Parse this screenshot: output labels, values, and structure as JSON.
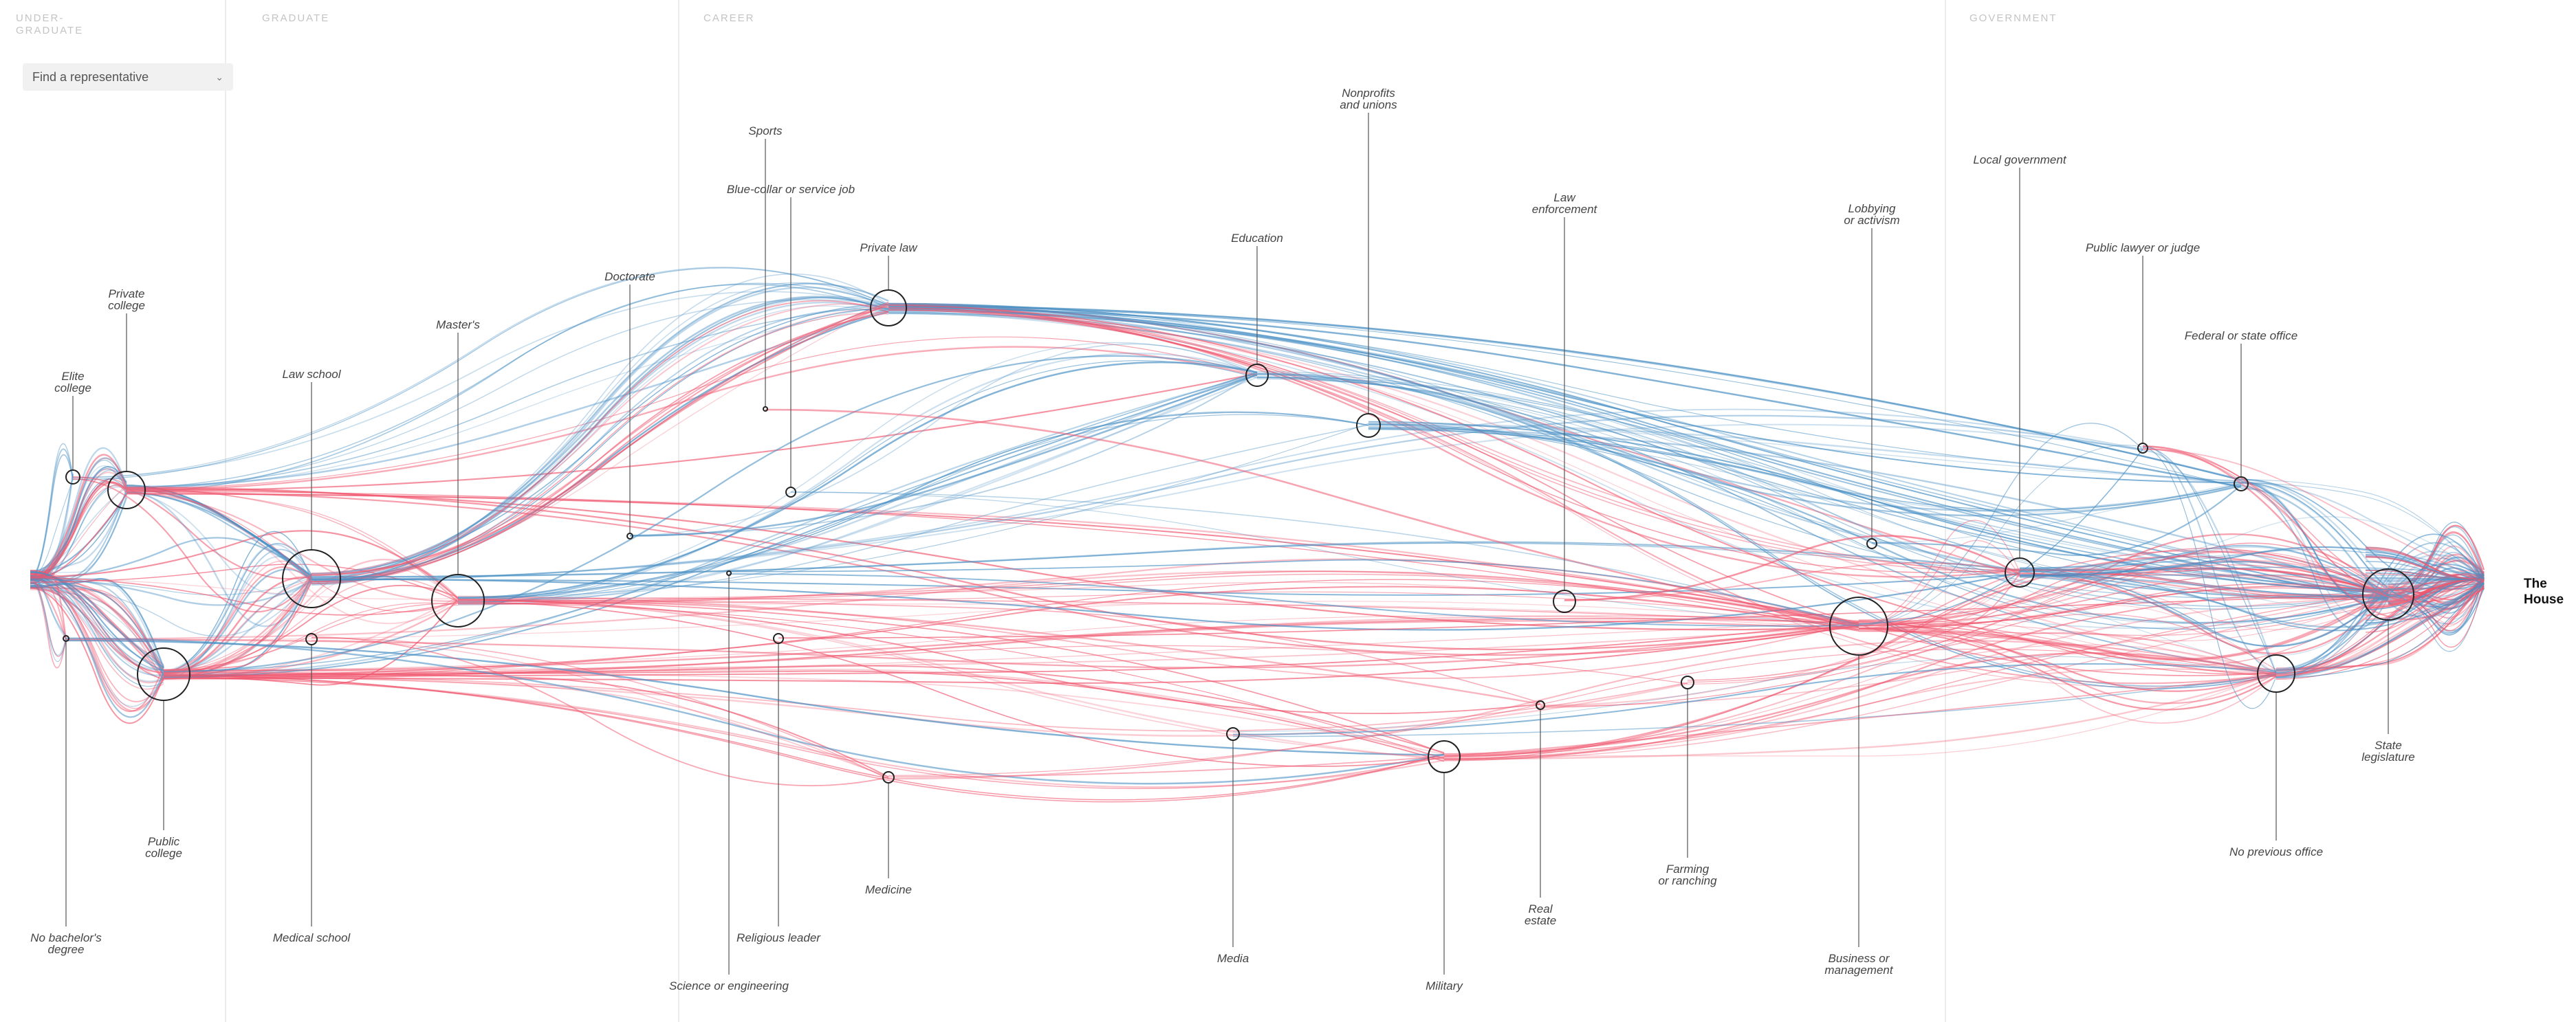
{
  "columns": [
    {
      "key": "undergraduate",
      "line1": "UNDER-",
      "line2": "GRADUATE"
    },
    {
      "key": "graduate",
      "line1": "GRADUATE",
      "line2": ""
    },
    {
      "key": "career",
      "line1": "CAREER",
      "line2": ""
    },
    {
      "key": "government",
      "line1": "GOVERNMENT",
      "line2": ""
    }
  ],
  "selector": {
    "label": "Find a representative",
    "icon": "chevron-down-icon"
  },
  "colors": {
    "democrat": "#4a90c4",
    "republican": "#f0566e",
    "node_stroke": "#222222",
    "divider": "#ececec"
  },
  "terminal": {
    "label": "The House"
  },
  "nodes": [
    {
      "id": "elite",
      "lines": [
        "Elite",
        "college"
      ]
    },
    {
      "id": "private_college",
      "lines": [
        "Private",
        "college"
      ]
    },
    {
      "id": "public_college",
      "lines": [
        "Public",
        "college"
      ]
    },
    {
      "id": "no_degree",
      "lines": [
        "No bachelor's",
        "degree"
      ]
    },
    {
      "id": "law_school",
      "lines": [
        "Law school"
      ]
    },
    {
      "id": "medical_school",
      "lines": [
        "Medical school"
      ]
    },
    {
      "id": "masters",
      "lines": [
        "Master's"
      ]
    },
    {
      "id": "doctorate",
      "lines": [
        "Doctorate"
      ]
    },
    {
      "id": "science",
      "lines": [
        "Science or engineering"
      ]
    },
    {
      "id": "sports",
      "lines": [
        "Sports"
      ]
    },
    {
      "id": "blue_collar",
      "lines": [
        "Blue-collar or service job"
      ]
    },
    {
      "id": "religious",
      "lines": [
        "Religious leader"
      ]
    },
    {
      "id": "private_law",
      "lines": [
        "Private law"
      ]
    },
    {
      "id": "medicine",
      "lines": [
        "Medicine"
      ]
    },
    {
      "id": "education",
      "lines": [
        "Education"
      ]
    },
    {
      "id": "media",
      "lines": [
        "Media"
      ]
    },
    {
      "id": "nonprofits",
      "lines": [
        "Nonprofits",
        "and unions"
      ]
    },
    {
      "id": "military",
      "lines": [
        "Military"
      ]
    },
    {
      "id": "real_estate",
      "lines": [
        "Real",
        "estate"
      ]
    },
    {
      "id": "law_enforcement",
      "lines": [
        "Law",
        "enforcement"
      ]
    },
    {
      "id": "farming",
      "lines": [
        "Farming",
        "or ranching"
      ]
    },
    {
      "id": "business",
      "lines": [
        "Business or",
        "management"
      ]
    },
    {
      "id": "lobbying",
      "lines": [
        "Lobbying",
        "or activism"
      ]
    },
    {
      "id": "local_gov",
      "lines": [
        "Local government"
      ]
    },
    {
      "id": "public_lawyer",
      "lines": [
        "Public lawyer or judge"
      ]
    },
    {
      "id": "federal_state",
      "lines": [
        "Federal or state office"
      ]
    },
    {
      "id": "no_previous",
      "lines": [
        "No previous office"
      ]
    },
    {
      "id": "state_leg",
      "lines": [
        "State",
        "legislature"
      ]
    }
  ],
  "flows": [
    [
      "elite",
      "private_law",
      3,
      "d"
    ],
    [
      "elite",
      "law_school",
      2,
      "r"
    ],
    [
      "private_college",
      "law_school",
      8,
      "d"
    ],
    [
      "private_college",
      "private_law",
      6,
      "d"
    ],
    [
      "private_college",
      "education",
      3,
      "r"
    ],
    [
      "private_college",
      "business",
      6,
      "r"
    ],
    [
      "private_college",
      "masters",
      5,
      "r"
    ],
    [
      "public_college",
      "law_school",
      10,
      "d"
    ],
    [
      "public_college",
      "law_school",
      10,
      "r"
    ],
    [
      "public_college",
      "masters",
      9,
      "r"
    ],
    [
      "public_college",
      "business",
      10,
      "r"
    ],
    [
      "public_college",
      "military",
      8,
      "r"
    ],
    [
      "public_college",
      "education",
      4,
      "d"
    ],
    [
      "public_college",
      "farming",
      3,
      "r"
    ],
    [
      "public_college",
      "medicine",
      2,
      "r"
    ],
    [
      "no_degree",
      "business",
      3,
      "r"
    ],
    [
      "no_degree",
      "military",
      2,
      "d"
    ],
    [
      "law_school",
      "private_law",
      14,
      "d"
    ],
    [
      "law_school",
      "private_law",
      10,
      "r"
    ],
    [
      "law_school",
      "public_lawyer",
      3,
      "d"
    ],
    [
      "law_school",
      "local_gov",
      4,
      "d"
    ],
    [
      "masters",
      "business",
      8,
      "r"
    ],
    [
      "masters",
      "education",
      7,
      "d"
    ],
    [
      "masters",
      "nonprofits",
      5,
      "d"
    ],
    [
      "masters",
      "military",
      5,
      "r"
    ],
    [
      "masters",
      "real_estate",
      3,
      "r"
    ],
    [
      "medical_school",
      "medicine",
      3,
      "r"
    ],
    [
      "doctorate",
      "education",
      3,
      "d"
    ],
    [
      "science",
      "business",
      2,
      "d"
    ],
    [
      "sports",
      "business",
      1,
      "r"
    ],
    [
      "blue_collar",
      "business",
      2,
      "d"
    ],
    [
      "religious",
      "state_leg",
      1,
      "r"
    ],
    [
      "private_law",
      "state_leg",
      12,
      "d"
    ],
    [
      "private_law",
      "local_gov",
      6,
      "r"
    ],
    [
      "private_law",
      "federal_state",
      8,
      "d"
    ],
    [
      "private_law",
      "no_previous",
      6,
      "r"
    ],
    [
      "education",
      "state_leg",
      6,
      "d"
    ],
    [
      "education",
      "no_previous",
      4,
      "d"
    ],
    [
      "nonprofits",
      "state_leg",
      6,
      "d"
    ],
    [
      "nonprofits",
      "federal_state",
      4,
      "d"
    ],
    [
      "military",
      "state_leg",
      6,
      "r"
    ],
    [
      "military",
      "no_previous",
      6,
      "r"
    ],
    [
      "business",
      "state_leg",
      12,
      "r"
    ],
    [
      "business",
      "local_gov",
      6,
      "r"
    ],
    [
      "business",
      "no_previous",
      8,
      "r"
    ],
    [
      "business",
      "public_lawyer",
      3,
      "d"
    ],
    [
      "real_estate",
      "state_leg",
      3,
      "r"
    ],
    [
      "law_enforcement",
      "local_gov",
      2,
      "r"
    ],
    [
      "farming",
      "state_leg",
      3,
      "r"
    ],
    [
      "media",
      "no_previous",
      3,
      "d"
    ],
    [
      "lobbying",
      "federal_state",
      2,
      "d"
    ],
    [
      "medicine",
      "no_previous",
      3,
      "r"
    ],
    [
      "local_gov",
      "state_leg",
      10,
      "r"
    ],
    [
      "local_gov",
      "state_leg",
      8,
      "d"
    ],
    [
      "public_lawyer",
      "no_previous",
      4,
      "d"
    ],
    [
      "federal_state",
      "state_leg",
      5,
      "d"
    ],
    [
      "state_leg",
      "house",
      26,
      "d"
    ],
    [
      "state_leg",
      "house",
      26,
      "r"
    ],
    [
      "no_previous",
      "house",
      14,
      "r"
    ],
    [
      "no_previous",
      "house",
      10,
      "d"
    ],
    [
      "federal_state",
      "house",
      8,
      "d"
    ],
    [
      "public_lawyer",
      "house",
      5,
      "r"
    ],
    [
      "local_gov",
      "house",
      10,
      "d"
    ]
  ]
}
